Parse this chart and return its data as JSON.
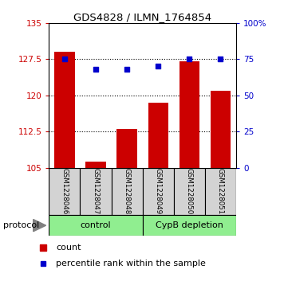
{
  "title": "GDS4828 / ILMN_1764854",
  "samples": [
    "GSM1228046",
    "GSM1228047",
    "GSM1228048",
    "GSM1228049",
    "GSM1228050",
    "GSM1228051"
  ],
  "counts": [
    129.0,
    106.2,
    113.0,
    118.5,
    127.0,
    121.0
  ],
  "percentiles": [
    75.0,
    68.0,
    68.0,
    70.0,
    75.5,
    75.0
  ],
  "ylim_left": [
    105,
    135
  ],
  "ylim_right": [
    0,
    100
  ],
  "yticks_left": [
    105,
    112.5,
    120,
    127.5,
    135
  ],
  "yticks_right": [
    0,
    25,
    50,
    75,
    100
  ],
  "ytick_labels_left": [
    "105",
    "112.5",
    "120",
    "127.5",
    "135"
  ],
  "ytick_labels_right": [
    "0",
    "25",
    "50",
    "75",
    "100%"
  ],
  "bar_color": "#cc0000",
  "dot_color": "#0000cc",
  "protocol_label": "protocol",
  "legend_count_label": "count",
  "legend_percentile_label": "percentile rank within the sample",
  "sample_box_color": "#d3d3d3",
  "protocol_colors": [
    "#90ee90",
    "#90ee90"
  ],
  "protocol_labels": [
    "control",
    "CypB depletion"
  ]
}
